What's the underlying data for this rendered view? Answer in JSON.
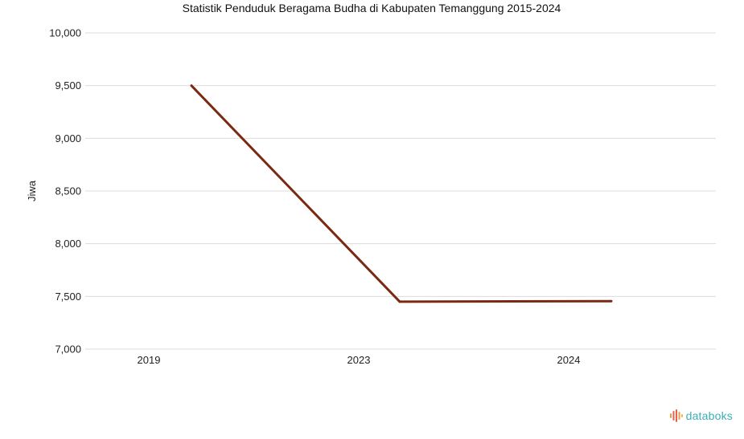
{
  "chart_data": {
    "type": "line",
    "title": "Statistik Penduduk Beragama Budha di Kabupaten Temanggung 2015-2024",
    "xlabel": "",
    "ylabel": "Jiwa",
    "categories": [
      "2019",
      "2023",
      "2024"
    ],
    "series": [
      {
        "values": [
          9500,
          7450,
          7455
        ],
        "color": "#7a2a12"
      }
    ],
    "ylim": [
      7000,
      10000
    ],
    "yticks": [
      7000,
      7500,
      8000,
      8500,
      9000,
      9500,
      10000
    ],
    "ytick_labels": [
      "7,000",
      "7,500",
      "8,000",
      "8,500",
      "9,000",
      "9,500",
      "10,000"
    ],
    "grid": true,
    "legend": "none"
  },
  "branding": {
    "text": "databoks",
    "icon": "databoks-logo-icon",
    "color": "#3ab0b8"
  }
}
